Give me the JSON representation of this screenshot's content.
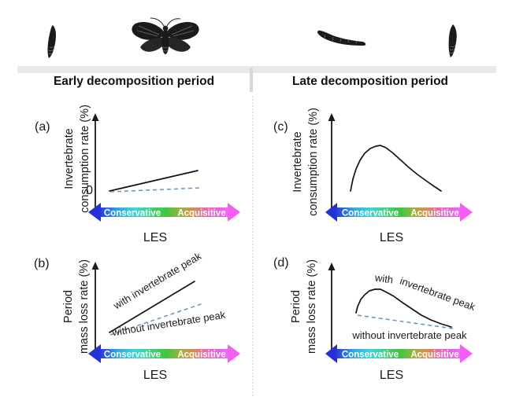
{
  "figure": {
    "top_band": {
      "icons": [
        "pupa-icon",
        "moth-icon",
        "caterpillar-icon",
        "pupa-icon"
      ]
    },
    "columns": [
      {
        "title": "Early decomposition period"
      },
      {
        "title": "Late decomposition period"
      }
    ],
    "axis": {
      "left_label": "Conservative",
      "right_label": "Acquisitive",
      "xlabel": "LES",
      "gradient_colors": [
        "#2733da",
        "#38d8d8",
        "#3fc53f",
        "#da8c4b",
        "#f468f4"
      ]
    },
    "colors": {
      "curve": "#141414",
      "dashed_reference": "#6591c2",
      "top_band": "#e9e9e9"
    },
    "panels": [
      {
        "letter": "(a)",
        "ylabel_line1": "Invertebrate",
        "ylabel_line2": "consumption rate (%)",
        "zero_label": "0",
        "series": [
          {
            "name": "invertebrate consumption",
            "points": [
              [
                109,
                123
              ],
              [
                221,
                97
              ]
            ]
          },
          {
            "name": "reference without peak",
            "points": [
              [
                110,
                124
              ],
              [
                224,
                119
              ]
            ]
          }
        ]
      },
      {
        "letter": "(b)",
        "ylabel_line1": "Period",
        "ylabel_line2": "mass loss rate (%)",
        "with_label": "with invertebrate peak",
        "without_label": "without invertebrate peak",
        "series": [
          {
            "name": "with invertebrate peak",
            "points": [
              [
                109,
                113
              ],
              [
                217,
                48
              ]
            ]
          },
          {
            "name": "without invertebrate peak",
            "points": [
              [
                110,
                116
              ],
              [
                228,
                76
              ]
            ]
          }
        ]
      },
      {
        "letter": "(c)",
        "ylabel_line1": "Invertebrate",
        "ylabel_line2": "consumption rate (%)",
        "series": [
          {
            "name": "invertebrate consumption",
            "points": [
              [
                115,
                123
              ],
              [
                118,
                108
              ],
              [
                122,
                95
              ],
              [
                127,
                84
              ],
              [
                133,
                75
              ],
              [
                140,
                69
              ],
              [
                147,
                66
              ],
              [
                153,
                65
              ],
              [
                160,
                68
              ],
              [
                168,
                74
              ],
              [
                178,
                83
              ],
              [
                189,
                93
              ],
              [
                200,
                102
              ],
              [
                211,
                110
              ],
              [
                221,
                117
              ],
              [
                230,
                123
              ]
            ]
          }
        ]
      },
      {
        "letter": "(d)",
        "ylabel_line1": "Period",
        "ylabel_line2": "mass loss rate (%)",
        "with_label_part1": "with",
        "with_label_part2": "invertebrate peak",
        "without_label": "without invertebrate peak",
        "series": [
          {
            "name": "with invertebrate peak",
            "points": [
              [
                122,
                88
              ],
              [
                124,
                80
              ],
              [
                128,
                71
              ],
              [
                133,
                65
              ],
              [
                139,
                60
              ],
              [
                146,
                58
              ],
              [
                153,
                58
              ],
              [
                161,
                62
              ],
              [
                170,
                67
              ],
              [
                181,
                75
              ],
              [
                193,
                83
              ],
              [
                205,
                91
              ],
              [
                217,
                97
              ],
              [
                230,
                102
              ],
              [
                243,
                106
              ]
            ]
          },
          {
            "name": "without invertebrate peak",
            "points": [
              [
                124,
                91
              ],
              [
                245,
                108
              ]
            ]
          }
        ]
      }
    ]
  },
  "chart_data": [
    {
      "panel": "a",
      "type": "line",
      "title": "Early decomposition period",
      "xlabel": "LES",
      "x_axis": {
        "style": "gradient double arrow",
        "left": "Conservative",
        "right": "Acquisitive"
      },
      "ylabel": "Invertebrate consumption rate (%)",
      "y_reference_label": "0",
      "series": [
        {
          "name": "invertebrate consumption",
          "style": "solid black",
          "x": [
            0,
            100
          ],
          "y": [
            2,
            22
          ]
        },
        {
          "name": "reference (no invertebrate effect)",
          "style": "dashed blue",
          "x": [
            0,
            100
          ],
          "y": [
            0,
            4
          ]
        }
      ]
    },
    {
      "panel": "b",
      "type": "line",
      "title": "Early decomposition period",
      "xlabel": "LES",
      "x_axis": {
        "style": "gradient double arrow",
        "left": "Conservative",
        "right": "Acquisitive"
      },
      "ylabel": "Period mass loss rate (%)",
      "series": [
        {
          "name": "with invertebrate peak",
          "style": "solid black",
          "x": [
            0,
            100
          ],
          "y": [
            10,
            62
          ]
        },
        {
          "name": "without invertebrate peak",
          "style": "dashed blue",
          "x": [
            0,
            100
          ],
          "y": [
            8,
            40
          ]
        }
      ]
    },
    {
      "panel": "c",
      "type": "line",
      "title": "Late decomposition period",
      "xlabel": "LES",
      "x_axis": {
        "style": "gradient double arrow",
        "left": "Conservative",
        "right": "Acquisitive"
      },
      "ylabel": "Invertebrate consumption rate (%)",
      "series": [
        {
          "name": "invertebrate consumption",
          "style": "solid black",
          "shape": "left-skewed hump",
          "x": [
            0,
            6,
            14,
            22,
            30,
            38,
            50,
            62,
            75,
            88,
            100
          ],
          "y": [
            0,
            22,
            42,
            55,
            60,
            58,
            48,
            36,
            22,
            10,
            0
          ]
        }
      ]
    },
    {
      "panel": "d",
      "type": "line",
      "title": "Late decomposition period",
      "xlabel": "LES",
      "x_axis": {
        "style": "gradient double arrow",
        "left": "Conservative",
        "right": "Acquisitive"
      },
      "ylabel": "Period mass loss rate (%)",
      "series": [
        {
          "name": "with invertebrate peak",
          "style": "solid black",
          "shape": "hump declining to right",
          "x": [
            0,
            8,
            17,
            25,
            33,
            45,
            58,
            72,
            86,
            100
          ],
          "y": [
            40,
            52,
            58,
            60,
            56,
            48,
            38,
            29,
            23,
            19
          ]
        },
        {
          "name": "without invertebrate peak",
          "style": "dashed blue",
          "x": [
            0,
            100
          ],
          "y": [
            37,
            17
          ]
        }
      ]
    }
  ]
}
